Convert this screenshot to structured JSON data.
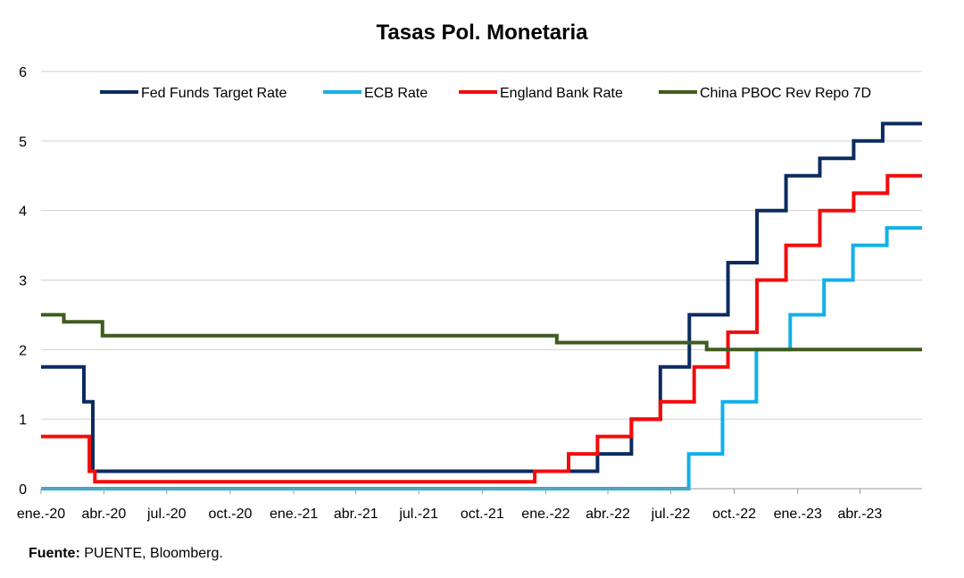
{
  "chart_data": {
    "type": "line",
    "title": "Tasas Pol. Monetaria",
    "xlabel": "",
    "ylabel": "",
    "x_range": [
      "2020-01-01",
      "2023-06-30"
    ],
    "ylim": [
      0,
      6
    ],
    "y_ticks": [
      0,
      1,
      2,
      3,
      4,
      5,
      6
    ],
    "x_ticks": [
      {
        "date": "2020-01-01",
        "label": "ene.-20"
      },
      {
        "date": "2020-04-01",
        "label": "abr.-20"
      },
      {
        "date": "2020-07-01",
        "label": "jul.-20"
      },
      {
        "date": "2020-10-01",
        "label": "oct.-20"
      },
      {
        "date": "2021-01-01",
        "label": "ene.-21"
      },
      {
        "date": "2021-04-01",
        "label": "abr.-21"
      },
      {
        "date": "2021-07-01",
        "label": "jul.-21"
      },
      {
        "date": "2021-10-01",
        "label": "oct.-21"
      },
      {
        "date": "2022-01-01",
        "label": "ene.-22"
      },
      {
        "date": "2022-04-01",
        "label": "abr.-22"
      },
      {
        "date": "2022-07-01",
        "label": "jul.-22"
      },
      {
        "date": "2022-10-01",
        "label": "oct.-22"
      },
      {
        "date": "2023-01-01",
        "label": "ene.-23"
      },
      {
        "date": "2023-04-01",
        "label": "abr.-23"
      }
    ],
    "grid": "horizontal",
    "legend": "top",
    "series": [
      {
        "name": "Fed Funds Target Rate",
        "color": "#0B2B61",
        "step": true,
        "points": [
          [
            "2020-01-01",
            1.75
          ],
          [
            "2020-03-03",
            1.25
          ],
          [
            "2020-03-16",
            0.25
          ],
          [
            "2022-03-17",
            0.5
          ],
          [
            "2022-05-05",
            1.0
          ],
          [
            "2022-06-16",
            1.75
          ],
          [
            "2022-07-28",
            2.5
          ],
          [
            "2022-09-22",
            3.25
          ],
          [
            "2022-11-03",
            4.0
          ],
          [
            "2022-12-15",
            4.5
          ],
          [
            "2023-02-02",
            4.75
          ],
          [
            "2023-03-23",
            5.0
          ],
          [
            "2023-05-04",
            5.25
          ],
          [
            "2023-06-30",
            5.25
          ]
        ]
      },
      {
        "name": "ECB Rate",
        "color": "#12B0E8",
        "step": true,
        "points": [
          [
            "2020-01-01",
            0.0
          ],
          [
            "2022-07-27",
            0.5
          ],
          [
            "2022-09-14",
            1.25
          ],
          [
            "2022-11-02",
            2.0
          ],
          [
            "2022-12-21",
            2.5
          ],
          [
            "2023-02-08",
            3.0
          ],
          [
            "2023-03-22",
            3.5
          ],
          [
            "2023-05-10",
            3.75
          ],
          [
            "2023-06-30",
            3.75
          ]
        ]
      },
      {
        "name": "England Bank Rate",
        "color": "#F40B0B",
        "step": true,
        "points": [
          [
            "2020-01-01",
            0.75
          ],
          [
            "2020-03-11",
            0.25
          ],
          [
            "2020-03-19",
            0.1
          ],
          [
            "2021-12-16",
            0.25
          ],
          [
            "2022-02-03",
            0.5
          ],
          [
            "2022-03-17",
            0.75
          ],
          [
            "2022-05-05",
            1.0
          ],
          [
            "2022-06-16",
            1.25
          ],
          [
            "2022-08-04",
            1.75
          ],
          [
            "2022-09-22",
            2.25
          ],
          [
            "2022-11-03",
            3.0
          ],
          [
            "2022-12-15",
            3.5
          ],
          [
            "2023-02-02",
            4.0
          ],
          [
            "2023-03-23",
            4.25
          ],
          [
            "2023-05-11",
            4.5
          ],
          [
            "2023-06-30",
            4.5
          ]
        ]
      },
      {
        "name": "China PBOC Rev Repo 7D",
        "color": "#3F5C1E",
        "step": true,
        "points": [
          [
            "2020-01-01",
            2.5
          ],
          [
            "2020-02-03",
            2.4
          ],
          [
            "2020-03-30",
            2.2
          ],
          [
            "2022-01-17",
            2.1
          ],
          [
            "2022-08-22",
            2.0
          ],
          [
            "2023-06-30",
            2.0
          ]
        ]
      }
    ]
  },
  "footer": {
    "source_label": "Fuente:",
    "source_text": " PUENTE, Bloomberg."
  }
}
